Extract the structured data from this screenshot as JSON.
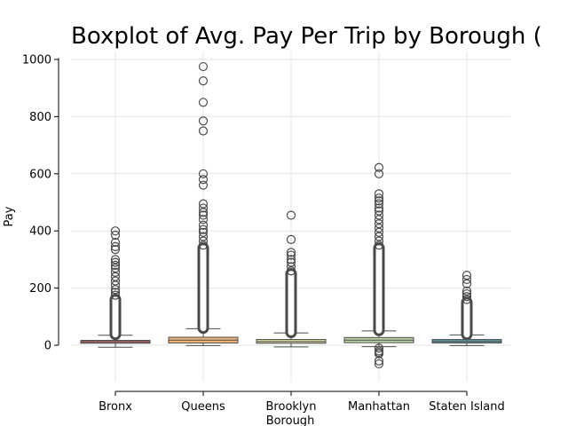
{
  "chart_data": {
    "type": "box",
    "title": "Boxplot of Avg. Pay Per Trip by Borough (",
    "xlabel": "Borough",
    "ylabel": "Pay",
    "ylim": [
      -130,
      1005
    ],
    "yticks": [
      0,
      200,
      400,
      600,
      800,
      1000
    ],
    "grid": true,
    "categories": [
      "Bronx",
      "Queens",
      "Brooklyn",
      "Manhattan",
      "Staten Island"
    ],
    "colors": {
      "Bronx": "#cf7170",
      "Queens": "#f2b477",
      "Brooklyn": "#e2e0a3",
      "Manhattan": "#bcd6a4",
      "Staten Island": "#5f9ea8"
    },
    "series": [
      {
        "category": "Bronx",
        "q1": 7,
        "median": 12,
        "q3": 17,
        "whisker_low": -7,
        "whisker_high": 35,
        "outlier_band": [
          38,
          160
        ],
        "outliers": [
          175,
          185,
          195,
          210,
          225,
          240,
          255,
          270,
          280,
          290,
          300,
          335,
          345,
          360,
          385,
          400
        ]
      },
      {
        "category": "Queens",
        "q1": 8,
        "median": 18,
        "q3": 28,
        "whisker_low": -1,
        "whisker_high": 58,
        "outlier_band": [
          60,
          340
        ],
        "outliers": [
          350,
          365,
          380,
          395,
          405,
          420,
          440,
          455,
          465,
          480,
          495,
          560,
          580,
          600,
          750,
          785,
          850,
          925,
          975
        ]
      },
      {
        "category": "Brooklyn",
        "q1": 7,
        "median": 13,
        "q3": 20,
        "whisker_low": -6,
        "whisker_high": 43,
        "outlier_band": [
          45,
          250
        ],
        "outliers": [
          260,
          275,
          290,
          300,
          315,
          325,
          370,
          455
        ]
      },
      {
        "category": "Manhattan",
        "q1": 9,
        "median": 18,
        "q3": 27,
        "whisker_low": -5,
        "whisker_high": 50,
        "outlier_band": [
          52,
          340
        ],
        "outliers": [
          -10,
          -20,
          -25,
          -30,
          -55,
          -65,
          350,
          365,
          380,
          395,
          410,
          425,
          440,
          455,
          470,
          480,
          495,
          505,
          515,
          530,
          600,
          622
        ]
      },
      {
        "category": "Staten Island",
        "q1": 8,
        "median": 13,
        "q3": 20,
        "whisker_low": -1,
        "whisker_high": 36,
        "outlier_band": [
          38,
          150
        ],
        "outliers": [
          160,
          170,
          180,
          190,
          215,
          230,
          245
        ]
      }
    ]
  }
}
